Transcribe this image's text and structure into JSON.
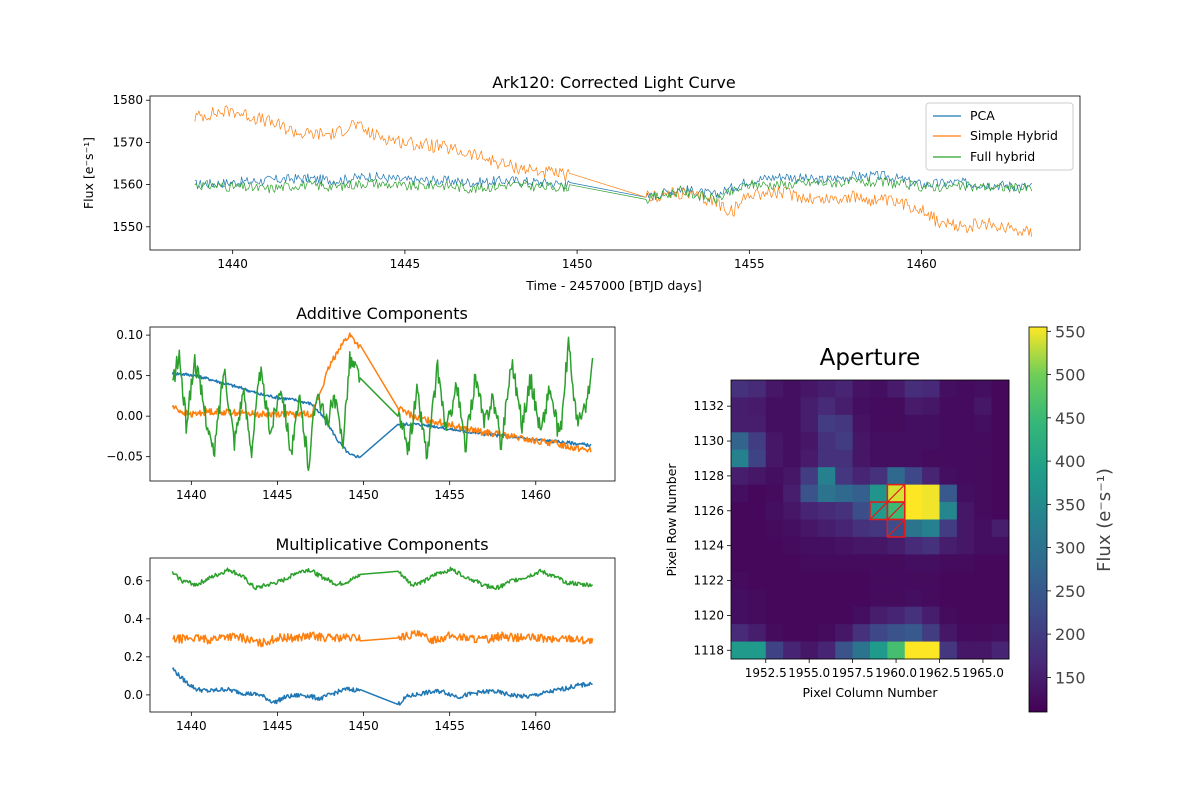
{
  "chart_data": [
    {
      "type": "line",
      "title": "Ark120: Corrected Light Curve",
      "xlabel": "Time - 2457000 [BTJD days]",
      "ylabel": "Flux [e⁻s⁻¹]",
      "xlim": [
        1437.6,
        1464.6
      ],
      "ylim": [
        1544.5,
        1581
      ],
      "xticks": [
        1440,
        1445,
        1450,
        1455,
        1460
      ],
      "yticks": [
        1550,
        1560,
        1570,
        1580
      ],
      "legend_position": "top-right",
      "gap": [
        1449.8,
        1452.0
      ],
      "series": [
        {
          "name": "PCA",
          "color": "#1f77b4",
          "width": 0.7,
          "x": [
            1438.9,
            1440,
            1441,
            1442,
            1443,
            1444,
            1445,
            1446,
            1447,
            1448,
            1449,
            1449.8,
            1452.0,
            1453,
            1454,
            1455,
            1456,
            1457,
            1458,
            1459,
            1460,
            1461,
            1462,
            1463.2
          ],
          "values": [
            1560,
            1560.5,
            1561,
            1561.5,
            1561,
            1562,
            1561,
            1561,
            1560.5,
            1561,
            1560.5,
            1560,
            1557,
            1559,
            1557.5,
            1561,
            1562,
            1561,
            1562,
            1562,
            1560,
            1560.5,
            1560,
            1559.5
          ]
        },
        {
          "name": "Simple Hybrid",
          "color": "#ff7f0e",
          "width": 0.7,
          "x": [
            1438.9,
            1439.5,
            1440,
            1441,
            1442,
            1443,
            1443.5,
            1444,
            1445,
            1446,
            1447,
            1448,
            1449,
            1449.8,
            1452.0,
            1453,
            1454,
            1454.5,
            1455,
            1456,
            1457,
            1458,
            1459,
            1460,
            1460.5,
            1461,
            1462,
            1463.2
          ],
          "values": [
            1576,
            1577,
            1577.5,
            1575,
            1572,
            1572,
            1574.5,
            1572,
            1570,
            1569,
            1567,
            1564.5,
            1563,
            1562,
            1557,
            1558,
            1556,
            1553.5,
            1558,
            1558,
            1556.5,
            1557,
            1556,
            1554.5,
            1551,
            1550,
            1550.5,
            1549
          ]
        },
        {
          "name": "Full hybrid",
          "color": "#2ca02c",
          "width": 0.7,
          "x": [
            1438.9,
            1440,
            1441,
            1442,
            1443,
            1444,
            1445,
            1446,
            1447,
            1448,
            1449,
            1449.8,
            1452.0,
            1453,
            1454,
            1455,
            1456,
            1457,
            1458,
            1459,
            1460,
            1461,
            1462,
            1463.2
          ],
          "values": [
            1560,
            1559.5,
            1559,
            1560,
            1559.5,
            1560.5,
            1559.5,
            1560,
            1559,
            1560,
            1559.5,
            1559.5,
            1556.5,
            1558.5,
            1556.5,
            1560,
            1560,
            1560.5,
            1560.5,
            1560.5,
            1559.5,
            1559.5,
            1559.5,
            1559
          ]
        }
      ]
    },
    {
      "type": "line",
      "title": "Additive Components",
      "xlim": [
        1437.6,
        1464.6
      ],
      "ylim": [
        -0.08,
        0.11
      ],
      "xticks": [
        1440,
        1445,
        1450,
        1455,
        1460
      ],
      "yticks": [
        -0.05,
        0.0,
        0.05,
        0.1
      ],
      "ytick_labels": [
        "−0.05",
        "0.00",
        "0.05",
        "0.10"
      ],
      "gap": [
        1449.8,
        1452.0
      ],
      "series": [
        {
          "color": "#1f77b4",
          "width": 1.5,
          "x": [
            1438.9,
            1440,
            1441,
            1442,
            1443,
            1444,
            1445,
            1446,
            1447,
            1447.8,
            1448.5,
            1449.2,
            1449.8,
            1452.0,
            1453,
            1454,
            1455,
            1456,
            1457,
            1458,
            1459,
            1460,
            1461,
            1462,
            1463.2
          ],
          "values": [
            0.053,
            0.051,
            0.046,
            0.04,
            0.034,
            0.027,
            0.023,
            0.02,
            0.015,
            -0.005,
            -0.03,
            -0.048,
            -0.05,
            -0.01,
            -0.01,
            -0.012,
            -0.016,
            -0.019,
            -0.022,
            -0.024,
            -0.027,
            -0.029,
            -0.031,
            -0.033,
            -0.036
          ]
        },
        {
          "color": "#ff7f0e",
          "width": 1.5,
          "x": [
            1438.9,
            1439.5,
            1440,
            1441,
            1442,
            1443,
            1444,
            1445,
            1446,
            1447,
            1447.5,
            1448,
            1448.6,
            1449.2,
            1449.8,
            1452.0,
            1453,
            1454,
            1455,
            1456,
            1457,
            1458,
            1459,
            1460,
            1461,
            1462,
            1463.2
          ],
          "values": [
            0.012,
            0.005,
            0.002,
            0.006,
            0.005,
            0.004,
            0.002,
            0.003,
            0.002,
            0.003,
            0.03,
            0.06,
            0.085,
            0.1,
            0.085,
            0.01,
            -0.002,
            -0.006,
            -0.01,
            -0.016,
            -0.02,
            -0.023,
            -0.027,
            -0.031,
            -0.033,
            -0.038,
            -0.042
          ]
        },
        {
          "color": "#2ca02c",
          "width": 1.5,
          "x": [
            1438.9,
            1439.3,
            1439.7,
            1440.2,
            1440.8,
            1441.3,
            1441.9,
            1442.5,
            1443,
            1443.5,
            1444,
            1444.6,
            1445.2,
            1445.8,
            1446.3,
            1446.8,
            1447.3,
            1447.8,
            1448.3,
            1448.8,
            1449.2,
            1449.8,
            1452.0,
            1452.6,
            1453.1,
            1453.7,
            1454.3,
            1454.8,
            1455.4,
            1455.9,
            1456.5,
            1457,
            1457.5,
            1458,
            1458.6,
            1459.2,
            1459.7,
            1460.3,
            1460.8,
            1461.4,
            1461.9,
            1462.4,
            1462.9,
            1463.3
          ],
          "values": [
            0.04,
            0.075,
            -0.01,
            0.07,
            0.005,
            -0.05,
            0.06,
            -0.03,
            0.03,
            -0.04,
            0.055,
            -0.02,
            0.04,
            -0.045,
            0.02,
            -0.06,
            0.035,
            -0.01,
            0.02,
            -0.03,
            0.07,
            0.05,
            0.0,
            -0.04,
            0.03,
            -0.05,
            0.06,
            -0.02,
            0.04,
            -0.04,
            0.05,
            -0.01,
            0.025,
            -0.035,
            0.07,
            -0.01,
            0.045,
            -0.02,
            0.035,
            -0.03,
            0.09,
            -0.01,
            0.01,
            0.065
          ]
        }
      ]
    },
    {
      "type": "line",
      "title": "Multiplicative Components",
      "xlim": [
        1437.6,
        1464.6
      ],
      "ylim": [
        -0.09,
        0.72
      ],
      "xticks": [
        1440,
        1445,
        1450,
        1455,
        1460
      ],
      "yticks": [
        0.0,
        0.2,
        0.4,
        0.6
      ],
      "ytick_labels": [
        "0.0",
        "0.2",
        "0.4",
        "0.6"
      ],
      "gap": [
        1449.8,
        1452.0
      ],
      "series": [
        {
          "color": "#1f77b4",
          "width": 1.5,
          "x": [
            1438.9,
            1439.3,
            1439.8,
            1440.3,
            1441,
            1442,
            1443,
            1444,
            1444.8,
            1445.5,
            1446.5,
            1447.5,
            1448.3,
            1449,
            1449.8,
            1452.0,
            1452.5,
            1453.5,
            1454.5,
            1455.5,
            1456.5,
            1457.5,
            1458.5,
            1459.5,
            1460.5,
            1461.5,
            1462.5,
            1463.3
          ],
          "values": [
            0.14,
            0.1,
            0.06,
            0.03,
            0.02,
            0.03,
            0.01,
            0.0,
            -0.04,
            -0.01,
            0.0,
            -0.02,
            0.01,
            0.03,
            0.025,
            -0.05,
            -0.01,
            0.01,
            0.02,
            -0.01,
            0.01,
            0.02,
            0.0,
            -0.01,
            0.01,
            0.03,
            0.05,
            0.06
          ]
        },
        {
          "color": "#ff7f0e",
          "width": 1.5,
          "x": [
            1438.9,
            1440,
            1441,
            1442,
            1443,
            1444,
            1445,
            1446,
            1447,
            1448,
            1449,
            1449.8,
            1452.0,
            1453,
            1454,
            1455,
            1456,
            1457,
            1458,
            1459,
            1460,
            1461,
            1462,
            1463.3
          ],
          "values": [
            0.29,
            0.3,
            0.29,
            0.31,
            0.3,
            0.27,
            0.3,
            0.3,
            0.31,
            0.3,
            0.3,
            0.3,
            0.3,
            0.32,
            0.29,
            0.31,
            0.3,
            0.29,
            0.31,
            0.3,
            0.3,
            0.29,
            0.3,
            0.28
          ]
        },
        {
          "color": "#2ca02c",
          "width": 1.5,
          "x": [
            1438.9,
            1439.5,
            1440.3,
            1441.2,
            1442.2,
            1443,
            1443.7,
            1444.5,
            1445.3,
            1446,
            1446.8,
            1447.6,
            1448.5,
            1449.2,
            1449.8,
            1452.0,
            1452.8,
            1453.6,
            1454.3,
            1455.1,
            1456,
            1456.9,
            1457.7,
            1458.6,
            1459.4,
            1460.3,
            1461.1,
            1461.9,
            1462.7,
            1463.3
          ],
          "values": [
            0.64,
            0.6,
            0.58,
            0.62,
            0.66,
            0.62,
            0.56,
            0.58,
            0.6,
            0.64,
            0.66,
            0.62,
            0.58,
            0.6,
            0.63,
            0.65,
            0.58,
            0.6,
            0.64,
            0.66,
            0.62,
            0.58,
            0.56,
            0.6,
            0.62,
            0.65,
            0.62,
            0.59,
            0.58,
            0.58
          ]
        }
      ]
    },
    {
      "type": "heatmap",
      "title": "Aperture",
      "xlabel": "Pixel Column Number",
      "ylabel": "Pixel Row Number",
      "colorbar_label": "Flux (e⁻s⁻¹)",
      "vmin": 110,
      "vmax": 555,
      "colorbar_ticks": [
        150,
        200,
        250,
        300,
        350,
        400,
        450,
        500,
        550
      ],
      "cols": [
        1951,
        1952,
        1953,
        1954,
        1955,
        1956,
        1957,
        1958,
        1959,
        1960,
        1961,
        1962,
        1963,
        1964,
        1965,
        1966
      ],
      "rows": [
        1133,
        1132,
        1131,
        1130,
        1129,
        1128,
        1127,
        1126,
        1125,
        1124,
        1123,
        1122,
        1121,
        1120,
        1119,
        1118
      ],
      "xticks": [
        1952.5,
        1955.0,
        1957.5,
        1960.0,
        1962.5,
        1965.0
      ],
      "xtick_labels": [
        "1952.5",
        "1955.0",
        "1957.5",
        "1960.0",
        "1962.5",
        "1965.0"
      ],
      "yticks": [
        1132,
        1130,
        1128,
        1126,
        1124,
        1122,
        1120,
        1118
      ],
      "aperture": [
        [
          1127,
          1960
        ],
        [
          1126,
          1959
        ],
        [
          1126,
          1960
        ],
        [
          1125,
          1960
        ]
      ],
      "values": [
        [
          180,
          170,
          140,
          130,
          140,
          150,
          160,
          135,
          130,
          145,
          175,
          165,
          130,
          125,
          130,
          120
        ],
        [
          150,
          145,
          130,
          130,
          150,
          170,
          150,
          130,
          125,
          125,
          145,
          140,
          125,
          125,
          140,
          120
        ],
        [
          150,
          150,
          130,
          130,
          150,
          200,
          190,
          135,
          125,
          125,
          130,
          130,
          125,
          125,
          130,
          120
        ],
        [
          270,
          200,
          140,
          130,
          140,
          180,
          200,
          140,
          130,
          130,
          130,
          130,
          125,
          125,
          125,
          120
        ],
        [
          330,
          210,
          140,
          130,
          145,
          180,
          180,
          140,
          130,
          130,
          130,
          125,
          125,
          125,
          125,
          120
        ],
        [
          150,
          140,
          130,
          140,
          200,
          330,
          190,
          160,
          180,
          280,
          220,
          160,
          130,
          125,
          125,
          120
        ],
        [
          130,
          120,
          125,
          150,
          240,
          300,
          280,
          260,
          370,
          540,
          555,
          550,
          250,
          130,
          125,
          120
        ],
        [
          120,
          120,
          130,
          140,
          160,
          170,
          180,
          230,
          380,
          450,
          555,
          550,
          340,
          140,
          125,
          120
        ],
        [
          120,
          120,
          125,
          130,
          140,
          150,
          160,
          180,
          190,
          230,
          300,
          330,
          200,
          140,
          130,
          150
        ],
        [
          120,
          120,
          120,
          125,
          130,
          130,
          135,
          140,
          140,
          150,
          170,
          180,
          150,
          140,
          130,
          130
        ],
        [
          120,
          120,
          120,
          120,
          125,
          125,
          125,
          125,
          125,
          125,
          130,
          130,
          125,
          125,
          120,
          120
        ],
        [
          125,
          120,
          120,
          120,
          120,
          120,
          120,
          120,
          125,
          125,
          125,
          125,
          120,
          120,
          120,
          120
        ],
        [
          130,
          125,
          120,
          120,
          120,
          120,
          120,
          120,
          125,
          125,
          130,
          125,
          120,
          120,
          120,
          120
        ],
        [
          130,
          125,
          120,
          120,
          120,
          120,
          120,
          130,
          150,
          160,
          180,
          150,
          125,
          120,
          120,
          120
        ],
        [
          170,
          150,
          125,
          120,
          120,
          125,
          140,
          180,
          220,
          240,
          250,
          200,
          140,
          125,
          125,
          130
        ],
        [
          380,
          380,
          210,
          160,
          140,
          160,
          240,
          300,
          380,
          460,
          555,
          555,
          190,
          140,
          140,
          160
        ]
      ]
    }
  ]
}
